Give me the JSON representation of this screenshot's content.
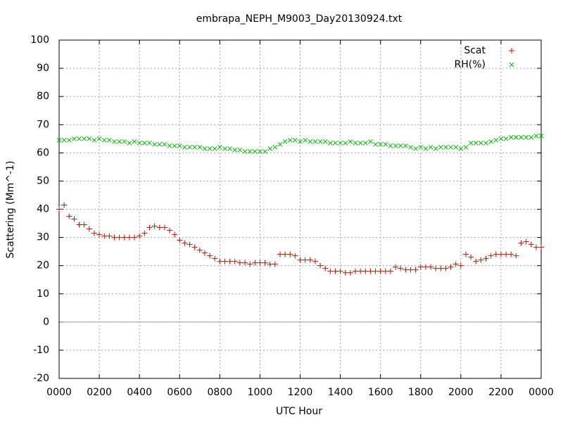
{
  "chart_data": {
    "type": "scatter",
    "title": "embrapa_NEPH_M9003_Day20130924.txt",
    "xlabel": "UTC Hour",
    "ylabel": "Scattering (Mm^-1)",
    "xlim": [
      0,
      24
    ],
    "ylim": [
      -20,
      100
    ],
    "xticks": [
      {
        "value": 0,
        "label": "0000"
      },
      {
        "value": 2,
        "label": "0200"
      },
      {
        "value": 4,
        "label": "0400"
      },
      {
        "value": 6,
        "label": "0600"
      },
      {
        "value": 8,
        "label": "0800"
      },
      {
        "value": 10,
        "label": "1000"
      },
      {
        "value": 12,
        "label": "1200"
      },
      {
        "value": 14,
        "label": "1400"
      },
      {
        "value": 16,
        "label": "1600"
      },
      {
        "value": 18,
        "label": "1800"
      },
      {
        "value": 20,
        "label": "2000"
      },
      {
        "value": 22,
        "label": "2200"
      },
      {
        "value": 24,
        "label": "0000"
      }
    ],
    "yticks": [
      -20,
      -10,
      0,
      10,
      20,
      30,
      40,
      50,
      60,
      70,
      80,
      90,
      100
    ],
    "grid": true,
    "zeroaxis": true,
    "legend": "top right",
    "x": [
      0,
      0.25,
      0.5,
      0.75,
      1,
      1.25,
      1.5,
      1.75,
      2,
      2.25,
      2.5,
      2.75,
      3,
      3.25,
      3.5,
      3.75,
      4,
      4.25,
      4.5,
      4.75,
      5,
      5.25,
      5.5,
      5.75,
      6,
      6.25,
      6.5,
      6.75,
      7,
      7.25,
      7.5,
      7.75,
      8,
      8.25,
      8.5,
      8.75,
      9,
      9.25,
      9.5,
      9.75,
      10,
      10.25,
      10.5,
      10.75,
      11,
      11.25,
      11.5,
      11.75,
      12,
      12.25,
      12.5,
      12.75,
      13,
      13.25,
      13.5,
      13.75,
      14,
      14.25,
      14.5,
      14.75,
      15,
      15.25,
      15.5,
      15.75,
      16,
      16.25,
      16.5,
      16.75,
      17,
      17.25,
      17.5,
      17.75,
      18,
      18.25,
      18.5,
      18.75,
      19,
      19.25,
      19.5,
      19.75,
      20,
      20.25,
      20.5,
      20.75,
      21,
      21.25,
      21.5,
      21.75,
      22,
      22.25,
      22.5,
      22.75,
      23,
      23.25,
      23.5,
      23.75,
      24
    ],
    "series": [
      {
        "name": "Scat",
        "color": "#e00000",
        "marker": "+",
        "values": [
          40,
          41.5,
          37.5,
          36.5,
          34.5,
          34.5,
          33,
          31.5,
          31,
          30.5,
          30.5,
          30,
          30,
          30,
          30,
          30,
          30.5,
          31.5,
          33.5,
          34,
          33.5,
          33.5,
          32.5,
          31,
          29,
          28,
          27.5,
          26.5,
          25.5,
          24.5,
          23.5,
          22.5,
          21.5,
          21.5,
          21.5,
          21.5,
          21,
          21,
          20.5,
          21,
          21,
          21,
          20.5,
          20.5,
          24,
          24,
          24,
          23.5,
          22,
          22,
          22,
          21.5,
          20,
          19,
          18,
          18,
          18,
          17.5,
          17.5,
          18,
          18,
          18,
          18,
          18,
          18,
          18,
          18,
          19.5,
          19,
          18.5,
          18.5,
          18.5,
          19.5,
          19.5,
          19.5,
          19,
          19,
          19,
          19.5,
          20.5,
          20,
          24,
          23,
          21.5,
          22,
          22.5,
          23.5,
          24,
          24,
          24,
          24,
          23.5,
          28,
          28.5,
          27.5,
          26.5,
          26.5
        ]
      },
      {
        "name": "RH(%)",
        "color": "#00b000",
        "marker": "x",
        "values": [
          64.5,
          64.5,
          64.5,
          65,
          65,
          65,
          65,
          64.5,
          65,
          64.5,
          64.5,
          64,
          64,
          64,
          63.5,
          64,
          63.5,
          63.5,
          63.5,
          63,
          63,
          63,
          62.5,
          62.5,
          62.5,
          62,
          62,
          62,
          62,
          61.5,
          61.5,
          61.5,
          62,
          61.5,
          61.5,
          61,
          61,
          60.5,
          60.5,
          60.5,
          60.5,
          60.5,
          61.5,
          62,
          63,
          64,
          64.5,
          64.5,
          64,
          64.5,
          64,
          64,
          64,
          64,
          63.5,
          63.5,
          63.5,
          63.5,
          64,
          63.5,
          63.5,
          63.5,
          64,
          63,
          63,
          63,
          62.5,
          62.5,
          62.5,
          62.5,
          62,
          61.5,
          62,
          61.5,
          62,
          61.5,
          62,
          62,
          62,
          62,
          61.5,
          62,
          63.5,
          63.5,
          63.5,
          63.5,
          64,
          64.5,
          65,
          65,
          65.5,
          65.5,
          65.5,
          65.5,
          65.5,
          66,
          66
        ]
      }
    ]
  }
}
